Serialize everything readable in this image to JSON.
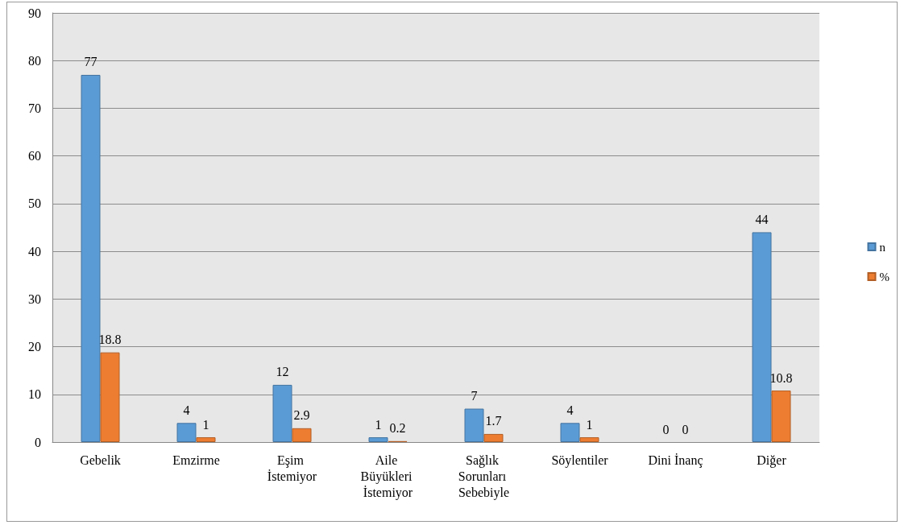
{
  "chart_data": {
    "type": "bar",
    "categories": [
      "Gebelik",
      "Emzirme",
      "Eşim İstemiyor",
      "Aile Büyükleri İstemiyor",
      "Sağlık Sorunları Sebebiyle",
      "Söylentiler",
      "Dini İnanç",
      "Diğer"
    ],
    "series": [
      {
        "name": "n",
        "color": "#5b9bd5",
        "values": [
          77,
          4,
          12,
          1,
          7,
          4,
          0,
          44
        ]
      },
      {
        "name": "%",
        "color": "#ed7d31",
        "values": [
          18.8,
          1,
          2.9,
          0.2,
          1.7,
          1,
          0,
          10.8
        ]
      }
    ],
    "ylim": [
      0,
      90
    ],
    "yticks": [
      0,
      10,
      20,
      30,
      40,
      50,
      60,
      70,
      80,
      90
    ],
    "grid": "y",
    "legend": "right",
    "data_labels": true
  }
}
